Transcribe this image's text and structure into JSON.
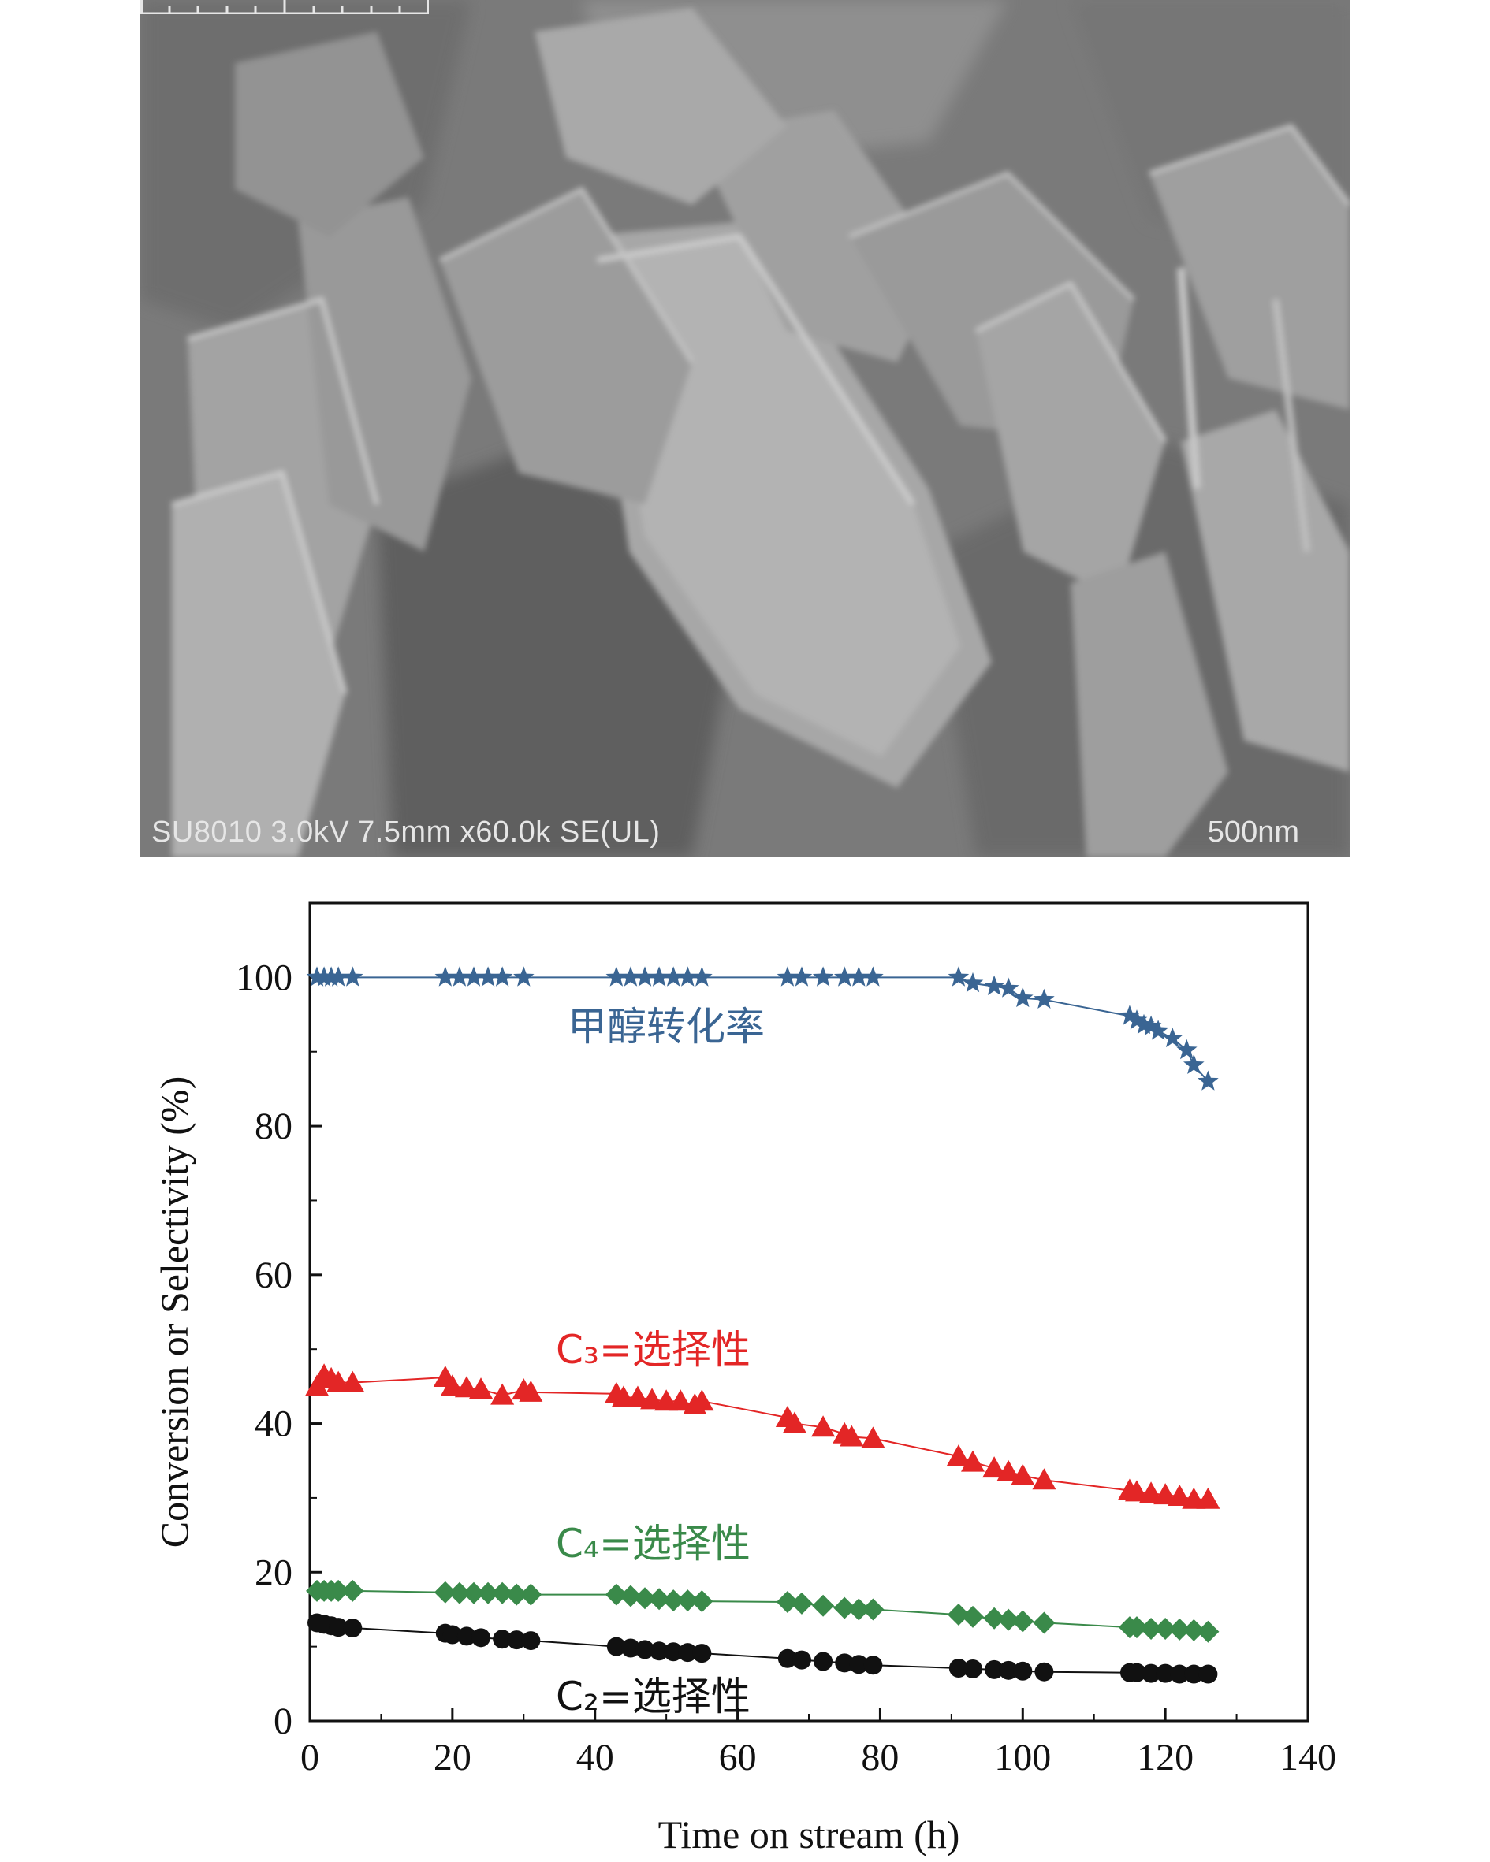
{
  "micrograph": {
    "caption": "SU8010 3.0kV 7.5mm x60.0k SE(UL)",
    "scale_label": "500nm"
  },
  "chart_data": {
    "type": "line",
    "xlabel": "Time on stream (h)",
    "ylabel": "Conversion or Selectivity (%)",
    "xlim": [
      0,
      140
    ],
    "ylim": [
      0,
      110
    ],
    "xticks": [
      "0",
      "20",
      "40",
      "60",
      "80",
      "100",
      "120",
      "140"
    ],
    "yticks": [
      "0",
      "20",
      "40",
      "60",
      "80",
      "100"
    ],
    "grid": false,
    "series": [
      {
        "name": "甲醇转化率",
        "color": "#3a6593",
        "marker": "star",
        "x": [
          1,
          2,
          3,
          4,
          6,
          19,
          21,
          23,
          25,
          27,
          30,
          43,
          45,
          47,
          49,
          51,
          53,
          55,
          67,
          69,
          72,
          75,
          77,
          79,
          91,
          93,
          96,
          98,
          100,
          103,
          115,
          116,
          117,
          118,
          119,
          121,
          123,
          124,
          126
        ],
        "y": [
          100,
          100,
          100,
          100,
          100,
          100,
          100,
          100,
          100,
          100,
          100,
          100,
          100,
          100,
          100,
          100,
          100,
          100,
          100,
          100,
          100,
          100,
          100,
          100,
          100,
          99.2,
          98.8,
          98.5,
          97.2,
          97,
          94.8,
          94.2,
          93.6,
          93.4,
          92.8,
          91.8,
          90.2,
          88.2,
          86
        ]
      },
      {
        "name": "C₃=选择性",
        "color": "#e32626",
        "marker": "triangle",
        "x": [
          1,
          2,
          3,
          4,
          6,
          19,
          20,
          22,
          24,
          27,
          30,
          31,
          43,
          44,
          46,
          48,
          50,
          52,
          54,
          55,
          67,
          68,
          72,
          75,
          76,
          79,
          91,
          93,
          96,
          98,
          100,
          103,
          115,
          116,
          118,
          120,
          122,
          124,
          126
        ],
        "y": [
          45,
          46.5,
          46,
          45.5,
          45.5,
          46.2,
          45,
          44.8,
          44.6,
          43.8,
          44.5,
          44.2,
          44,
          43.5,
          43.5,
          43.2,
          43,
          43,
          42.5,
          43,
          40.8,
          40,
          39.5,
          38.6,
          38.2,
          38,
          35.6,
          34.8,
          34,
          33.5,
          33,
          32.4,
          31,
          30.8,
          30.6,
          30.4,
          30.2,
          29.8,
          29.8
        ]
      },
      {
        "name": "C₄=选择性",
        "color": "#3a8a4a",
        "marker": "diamond",
        "x": [
          1,
          2,
          3,
          4,
          6,
          19,
          21,
          23,
          25,
          27,
          29,
          31,
          43,
          45,
          47,
          49,
          51,
          53,
          55,
          67,
          69,
          72,
          75,
          77,
          79,
          91,
          93,
          96,
          98,
          100,
          103,
          115,
          116,
          118,
          120,
          122,
          124,
          126
        ],
        "y": [
          17.5,
          17.5,
          17.5,
          17.5,
          17.5,
          17.3,
          17.2,
          17.2,
          17.2,
          17.2,
          17,
          17,
          17,
          16.8,
          16.5,
          16.4,
          16.2,
          16.2,
          16.1,
          16,
          15.8,
          15.5,
          15.2,
          15,
          15,
          14.3,
          14,
          13.8,
          13.6,
          13.4,
          13.2,
          12.6,
          12.6,
          12.4,
          12.4,
          12.3,
          12.2,
          12
        ]
      },
      {
        "name": "C₂=选择性",
        "color": "#111111",
        "marker": "circle",
        "x": [
          1,
          2,
          3,
          4,
          6,
          19,
          20,
          22,
          24,
          27,
          29,
          31,
          43,
          45,
          47,
          49,
          51,
          53,
          55,
          67,
          69,
          72,
          75,
          77,
          79,
          91,
          93,
          96,
          98,
          100,
          103,
          115,
          116,
          118,
          120,
          122,
          124,
          126
        ],
        "y": [
          13.2,
          13,
          12.8,
          12.6,
          12.5,
          11.8,
          11.6,
          11.4,
          11.2,
          11,
          10.9,
          10.8,
          10,
          9.8,
          9.6,
          9.4,
          9.3,
          9.2,
          9.1,
          8.4,
          8.2,
          8,
          7.8,
          7.6,
          7.5,
          7.1,
          7,
          6.9,
          6.8,
          6.7,
          6.6,
          6.5,
          6.5,
          6.4,
          6.4,
          6.3,
          6.3,
          6.3
        ]
      }
    ]
  }
}
